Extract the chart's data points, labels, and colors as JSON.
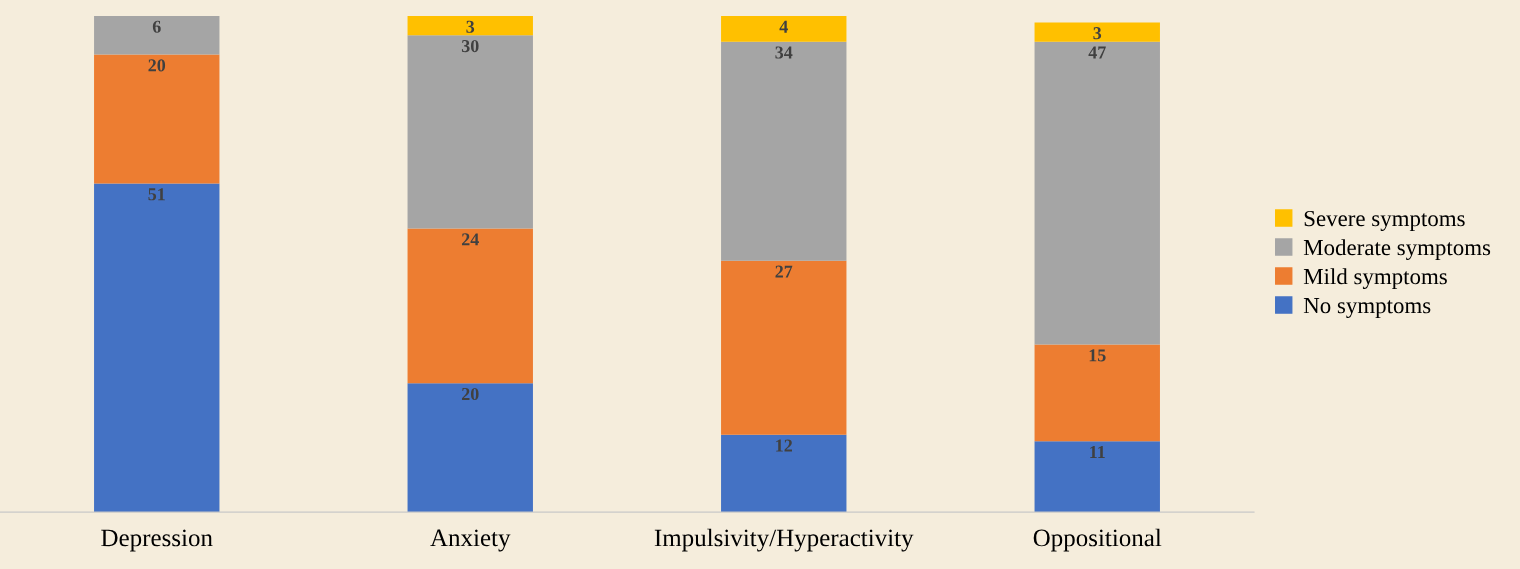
{
  "chart_data": {
    "type": "bar",
    "stacked": true,
    "data_labels": true,
    "legend": "right",
    "grid": false,
    "categories": [
      "Depression",
      "Anxiety",
      "Impulsivity/Hyperactivity",
      "Oppositional"
    ],
    "series": [
      {
        "name": "No symptoms",
        "color": "#4472c4",
        "values": [
          51,
          20,
          12,
          11
        ]
      },
      {
        "name": "Mild symptoms",
        "color": "#ed7d31",
        "values": [
          20,
          24,
          27,
          15
        ]
      },
      {
        "name": "Moderate symptoms",
        "color": "#a5a5a5",
        "values": [
          6,
          30,
          34,
          47
        ]
      },
      {
        "name": "Severe symptoms",
        "color": "#ffc000",
        "values": [
          null,
          3,
          4,
          3
        ]
      }
    ]
  }
}
